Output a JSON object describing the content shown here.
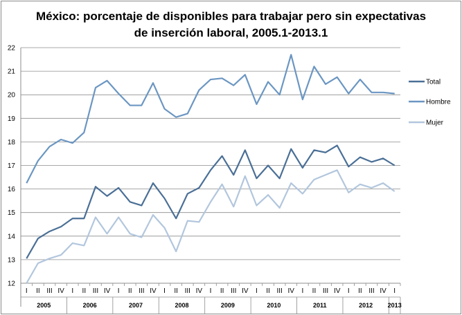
{
  "chart_data": {
    "type": "line",
    "title_line1": "México: porcentaje de disponibles para trabajar pero sin expectativas",
    "title_line2": "de inserción laboral, 2005.1-2013.1",
    "ylim": [
      12,
      22
    ],
    "y_ticks": [
      "12",
      "13",
      "14",
      "15",
      "16",
      "17",
      "18",
      "19",
      "20",
      "21",
      "22"
    ],
    "grid": true,
    "legend_position": "right",
    "quarters": [
      "I",
      "II",
      "III",
      "IV",
      "I",
      "II",
      "III",
      "IV",
      "I",
      "II",
      "III",
      "IV",
      "I",
      "II",
      "III",
      "IV",
      "I",
      "II",
      "III",
      "IV",
      "I",
      "II",
      "III",
      "IV",
      "I",
      "II",
      "III",
      "IV",
      "I",
      "II",
      "III",
      "IV",
      "I"
    ],
    "years": [
      "2005",
      "2006",
      "2007",
      "2008",
      "2009",
      "2010",
      "2011",
      "2012",
      "2013"
    ],
    "series": [
      {
        "name": "Total",
        "color": "#4a6f96",
        "values": [
          13.05,
          13.9,
          14.2,
          14.4,
          14.75,
          14.75,
          16.1,
          15.7,
          16.05,
          15.45,
          15.3,
          16.25,
          15.6,
          14.75,
          15.8,
          16.05,
          16.8,
          17.4,
          16.6,
          17.65,
          16.45,
          17.0,
          16.45,
          17.7,
          16.9,
          17.65,
          17.55,
          17.85,
          16.95,
          17.35,
          17.15,
          17.3,
          17.0
        ]
      },
      {
        "name": "Hombre",
        "color": "#6b96c2",
        "values": [
          16.25,
          17.2,
          17.8,
          18.1,
          17.95,
          18.4,
          20.3,
          20.6,
          20.05,
          19.55,
          19.55,
          20.5,
          19.4,
          19.05,
          19.2,
          20.2,
          20.65,
          20.7,
          20.4,
          20.85,
          19.6,
          20.55,
          20.0,
          21.7,
          19.8,
          21.2,
          20.45,
          20.75,
          20.05,
          20.65,
          20.1,
          20.1,
          20.05
        ]
      },
      {
        "name": "Mujer",
        "color": "#b2c6dd",
        "values": [
          12.0,
          12.85,
          13.05,
          13.2,
          13.7,
          13.6,
          14.8,
          14.1,
          14.8,
          14.1,
          13.95,
          14.9,
          14.35,
          13.35,
          14.65,
          14.6,
          15.45,
          16.2,
          15.25,
          16.55,
          15.3,
          15.75,
          15.2,
          16.25,
          15.8,
          16.4,
          16.6,
          16.8,
          15.85,
          16.2,
          16.05,
          16.25,
          15.9
        ]
      }
    ]
  }
}
